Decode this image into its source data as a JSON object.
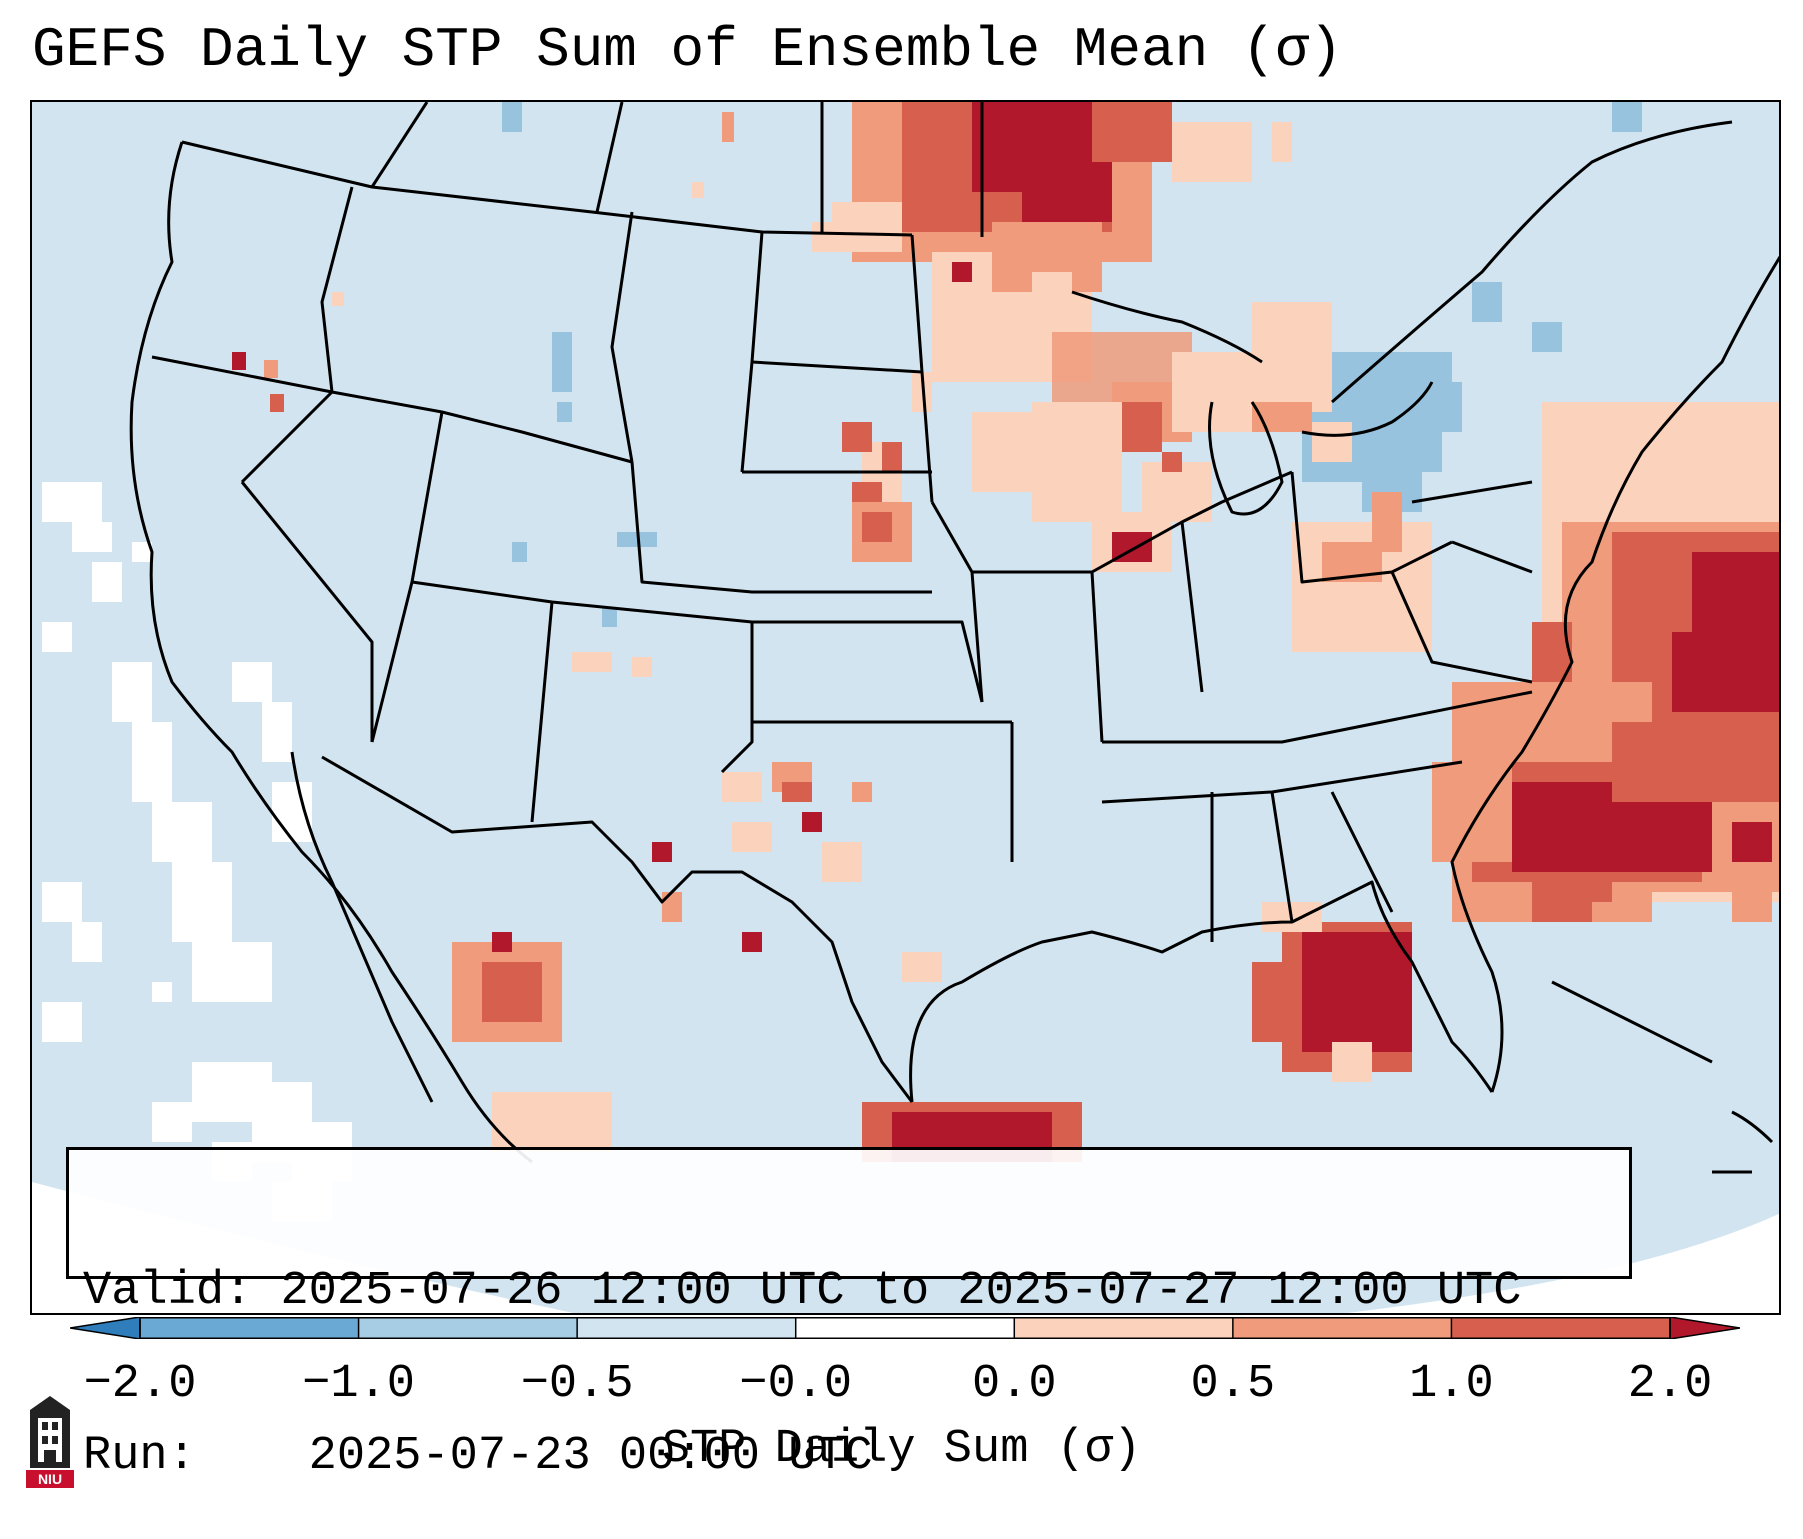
{
  "title": "GEFS Daily STP Sum of Ensemble Mean (σ)",
  "info": {
    "valid_label": "Valid:",
    "valid_value": "2025-07-26 12:00 UTC to 2025-07-27 12:00 UTC",
    "run_label": "Run:",
    "run_value": "2025-07-23 00:00 UTC"
  },
  "colorbar": {
    "label": "STP Daily Sum (σ)",
    "ticks": [
      "−2.0",
      "−1.0",
      "−0.5",
      "−0.0",
      "0.0",
      "0.5",
      "1.0",
      "2.0"
    ],
    "colors": [
      "#2f7dbb",
      "#6aa9d3",
      "#a6cde4",
      "#d1e4ef",
      "#ffffff",
      "#fbd2bc",
      "#f09b7c",
      "#d6604d",
      "#b2182b"
    ],
    "extend": "both"
  },
  "legend_values": {
    "ocean_background": "-0.5 to -0.0",
    "missing": "white"
  },
  "colors": {
    "ocean": "#d1e4ef",
    "border": "#000000",
    "hot_spot": "#b2182b"
  },
  "logo": {
    "text": "NIU"
  }
}
